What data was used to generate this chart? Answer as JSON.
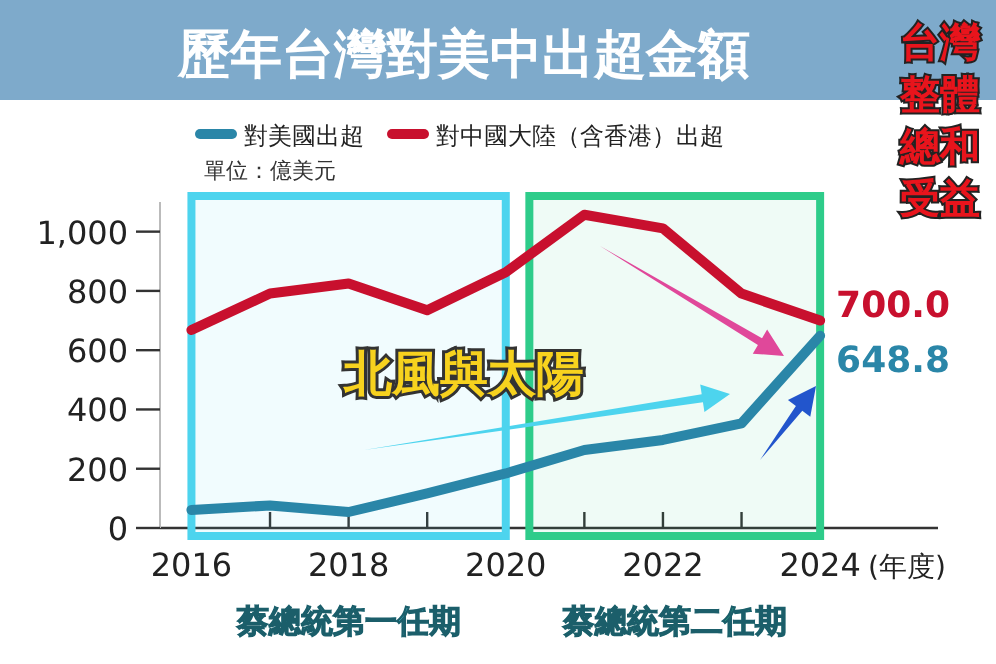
{
  "chart_data": {
    "type": "line",
    "title": "歷年台灣對美中出超金額",
    "x": [
      2016,
      2017,
      2018,
      2019,
      2020,
      2021,
      2022,
      2023,
      2024
    ],
    "series": [
      {
        "name": "對美國出超",
        "color": "#2a86a8",
        "values": [
          61,
          76,
          54,
          117,
          184,
          263,
          297,
          353,
          648.8
        ],
        "value_labels": [
          null,
          null,
          null,
          null,
          null,
          null,
          null,
          null,
          "648.8"
        ]
      },
      {
        "name": "對中國大陸（含香港）出超",
        "color": "#c8102e",
        "values": [
          668,
          791,
          825,
          735,
          863,
          1057,
          1011,
          791,
          700
        ],
        "value_labels": [
          null,
          null,
          null,
          null,
          null,
          null,
          null,
          null,
          "700.0"
        ]
      }
    ],
    "xlabel": "(年度)",
    "xlim": [
      2015.6,
      2025.5
    ],
    "ylim": [
      0,
      1100
    ],
    "xticks": [
      2016,
      {
        "value": 2017,
        "label": null
      },
      2018,
      {
        "value": 2019,
        "label": null
      },
      2020,
      {
        "value": 2021,
        "label": null
      },
      2022,
      {
        "value": 2023,
        "label": null
      },
      2024
    ],
    "yticks": [
      0,
      200,
      400,
      600,
      800,
      {
        "value": 1000,
        "label": "1,000"
      }
    ],
    "legend": "top",
    "marker": "none",
    "line_style": "solid",
    "bands": [
      {
        "axis": "x",
        "from": 2016,
        "to": 2020,
        "label": "蔡總統第一任期",
        "color": "#4dd4ee"
      },
      {
        "axis": "x",
        "from": 2020.3,
        "to": 2024,
        "label": "蔡總統第二任期",
        "color": "#2ecc8a"
      }
    ],
    "annotations": [
      "單位：億美元",
      "北風與太陽",
      "台灣整體總和受益"
    ]
  }
}
